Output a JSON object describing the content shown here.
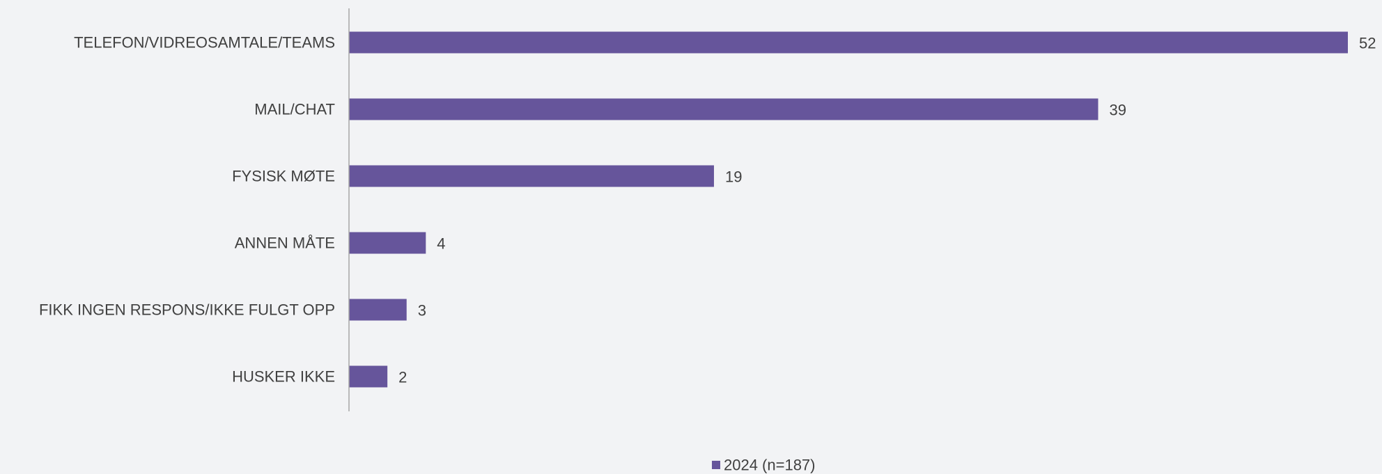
{
  "chart_data": {
    "type": "bar",
    "orientation": "horizontal",
    "categories": [
      "TELEFON/VIDREOSAMTALE/TEAMS",
      "MAIL/CHAT",
      "FYSISK MØTE",
      "ANNEN MÅTE",
      "FIKK INGEN RESPONS/IKKE FULGT OPP",
      "HUSKER IKKE"
    ],
    "series": [
      {
        "name": "2024 (n=187)",
        "values": [
          52,
          39,
          19,
          4,
          3,
          2
        ],
        "color": "#66559b"
      }
    ],
    "title": "",
    "xlabel": "",
    "ylabel": "",
    "xlim": [
      0,
      52
    ],
    "grid": false,
    "legend_position": "bottom-center",
    "data_labels": true
  }
}
